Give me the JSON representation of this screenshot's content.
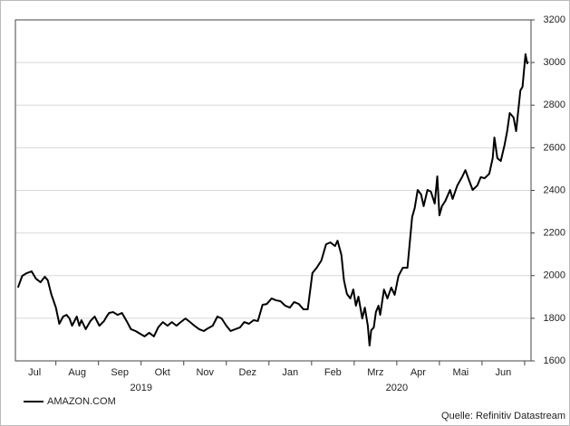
{
  "chart_data": {
    "type": "line",
    "x": [
      0.11,
      0.21,
      0.32,
      0.43,
      0.53,
      0.64,
      0.74,
      0.81,
      0.89,
      1.0,
      1.08,
      1.17,
      1.25,
      1.32,
      1.38,
      1.49,
      1.55,
      1.6,
      1.7,
      1.81,
      1.91,
      2.02,
      2.13,
      2.19,
      2.25,
      2.34,
      2.45,
      2.55,
      2.66,
      2.76,
      2.87,
      2.98,
      3.08,
      3.19,
      3.3,
      3.4,
      3.51,
      3.62,
      3.72,
      3.83,
      3.93,
      4.04,
      4.15,
      4.25,
      4.36,
      4.47,
      4.57,
      4.68,
      4.79,
      4.89,
      5.0,
      5.1,
      5.21,
      5.32,
      5.42,
      5.53,
      5.64,
      5.74,
      5.85,
      5.95,
      6.06,
      6.17,
      6.27,
      6.38,
      6.49,
      6.59,
      6.7,
      6.81,
      6.91,
      7.02,
      7.12,
      7.23,
      7.34,
      7.44,
      7.55,
      7.61,
      7.7,
      7.76,
      7.83,
      7.91,
      7.98,
      8.04,
      8.1,
      8.19,
      8.25,
      8.32,
      8.36,
      8.4,
      8.46,
      8.51,
      8.57,
      8.61,
      8.7,
      8.78,
      8.87,
      8.95,
      9.04,
      9.14,
      9.25,
      9.36,
      9.42,
      9.49,
      9.57,
      9.63,
      9.72,
      9.8,
      9.89,
      9.95,
      10.0,
      10.06,
      10.14,
      10.25,
      10.31,
      10.42,
      10.53,
      10.61,
      10.7,
      10.78,
      10.89,
      10.97,
      11.06,
      11.17,
      11.25,
      11.29,
      11.36,
      11.44,
      11.53,
      11.59,
      11.65,
      11.74,
      11.8,
      11.9,
      11.95,
      12.02,
      12.06,
      12.08
    ],
    "series": [
      {
        "name": "AMAZON.COM",
        "color": "#000000",
        "values": [
          1944,
          1999,
          2012,
          2020,
          1986,
          1969,
          1995,
          1978,
          1914,
          1850,
          1774,
          1808,
          1816,
          1799,
          1765,
          1808,
          1765,
          1791,
          1749,
          1787,
          1808,
          1765,
          1787,
          1808,
          1825,
          1829,
          1816,
          1825,
          1787,
          1749,
          1740,
          1727,
          1715,
          1732,
          1715,
          1757,
          1782,
          1765,
          1782,
          1765,
          1782,
          1799,
          1782,
          1765,
          1749,
          1740,
          1753,
          1765,
          1808,
          1799,
          1765,
          1740,
          1749,
          1757,
          1782,
          1774,
          1791,
          1787,
          1863,
          1867,
          1893,
          1884,
          1880,
          1859,
          1850,
          1876,
          1867,
          1842,
          1842,
          2012,
          2037,
          2071,
          2147,
          2156,
          2139,
          2164,
          2097,
          1978,
          1914,
          1893,
          1935,
          1859,
          1901,
          1799,
          1850,
          1765,
          1672,
          1744,
          1757,
          1829,
          1859,
          1816,
          1935,
          1893,
          1944,
          1910,
          1999,
          2037,
          2037,
          2275,
          2317,
          2402,
          2381,
          2326,
          2402,
          2394,
          2338,
          2466,
          2283,
          2326,
          2351,
          2402,
          2360,
          2423,
          2462,
          2495,
          2445,
          2402,
          2423,
          2462,
          2457,
          2478,
          2551,
          2648,
          2551,
          2538,
          2614,
          2678,
          2763,
          2742,
          2678,
          2869,
          2886,
          3039,
          2996,
          3005
        ]
      }
    ],
    "xlim": [
      0.05,
      12.15
    ],
    "xticks": [
      {
        "value": 0.5,
        "label": "Jul"
      },
      {
        "value": 1.5,
        "label": "Aug"
      },
      {
        "value": 2.5,
        "label": "Sep"
      },
      {
        "value": 3.5,
        "label": "Okt"
      },
      {
        "value": 4.5,
        "label": "Nov"
      },
      {
        "value": 5.5,
        "label": "Dez"
      },
      {
        "value": 6.5,
        "label": "Jan"
      },
      {
        "value": 7.5,
        "label": "Feb"
      },
      {
        "value": 8.5,
        "label": "Mrz"
      },
      {
        "value": 9.5,
        "label": "Apr"
      },
      {
        "value": 10.5,
        "label": "Mai"
      },
      {
        "value": 11.5,
        "label": "Jun"
      }
    ],
    "xminor_ticks": [
      1,
      2,
      3,
      4,
      5,
      6,
      7,
      8,
      9,
      10,
      11,
      12
    ],
    "xticks2": [
      {
        "value": 3,
        "label": "2019"
      },
      {
        "value": 9,
        "label": "2020"
      }
    ],
    "ylim": [
      1600,
      3200
    ],
    "yticks": [
      1600,
      1800,
      2000,
      2200,
      2400,
      2600,
      2800,
      3000,
      3200
    ],
    "y_axis_side": "right",
    "grid": true,
    "legend": "bottom-left",
    "source": "Quelle: Refinitiv Datastream"
  }
}
